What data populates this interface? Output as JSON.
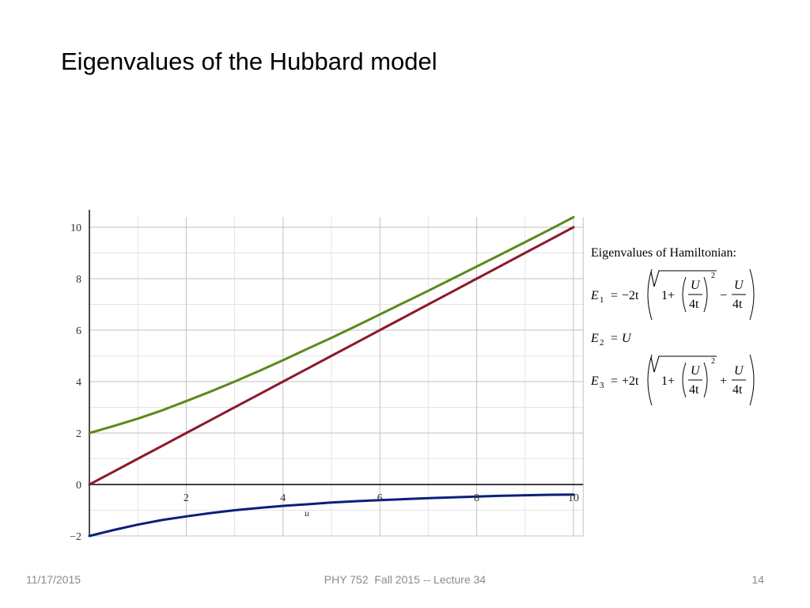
{
  "slide": {
    "title": "Eigenvalues of the Hubbard model"
  },
  "footer": {
    "date": "11/17/2015",
    "course": "PHY 752  Fall 2015 -- Lecture 34",
    "page": "14"
  },
  "equations": {
    "heading": "Eigenvalues of Hamiltonian:",
    "e1": {
      "lhs": "E",
      "sub": "1",
      "eq": "=",
      "coef": "−2t",
      "one_plus": "1+",
      "num": "U",
      "den": "4t",
      "exp": "2",
      "op": "−",
      "num2": "U",
      "den2": "4t"
    },
    "e2": {
      "lhs": "E",
      "sub": "2",
      "eq": "=",
      "rhs": "U"
    },
    "e3": {
      "lhs": "E",
      "sub": "3",
      "eq": "=",
      "coef": "+2t",
      "one_plus": "1+",
      "num": "U",
      "den": "4t",
      "exp": "2",
      "op": "+",
      "num2": "U",
      "den2": "4t"
    }
  },
  "chart_data": {
    "type": "line",
    "title": "",
    "xlabel": "u",
    "ylabel": "",
    "xlim": [
      0,
      10.2
    ],
    "ylim": [
      -2,
      10.4
    ],
    "xticks": [
      2,
      4,
      6,
      8,
      10
    ],
    "yticks": [
      -2,
      0,
      2,
      4,
      6,
      8,
      10
    ],
    "grid": true,
    "legend": "none",
    "x": [
      0,
      0.5,
      1,
      1.5,
      2,
      2.5,
      3,
      3.5,
      4,
      4.5,
      5,
      5.5,
      6,
      6.5,
      7,
      7.5,
      8,
      8.5,
      9,
      9.5,
      10
    ],
    "series": [
      {
        "color": "#5a8a1a",
        "values": [
          2.0,
          2.27,
          2.56,
          2.88,
          3.24,
          3.61,
          4.0,
          4.41,
          4.83,
          5.27,
          5.7,
          6.15,
          6.61,
          7.07,
          7.53,
          8.0,
          8.47,
          8.94,
          9.42,
          9.9,
          10.39
        ]
      },
      {
        "color": "#8b1a2b",
        "values": [
          0,
          0.5,
          1,
          1.5,
          2,
          2.5,
          3,
          3.5,
          4,
          4.5,
          5,
          5.5,
          6,
          6.5,
          7,
          7.5,
          8,
          8.5,
          9,
          9.5,
          10
        ]
      },
      {
        "color": "#0a1f7a",
        "values": [
          -2.0,
          -1.77,
          -1.56,
          -1.38,
          -1.24,
          -1.11,
          -1.0,
          -0.91,
          -0.83,
          -0.77,
          -0.7,
          -0.65,
          -0.61,
          -0.57,
          -0.53,
          -0.5,
          -0.47,
          -0.44,
          -0.42,
          -0.4,
          -0.39
        ]
      }
    ]
  }
}
